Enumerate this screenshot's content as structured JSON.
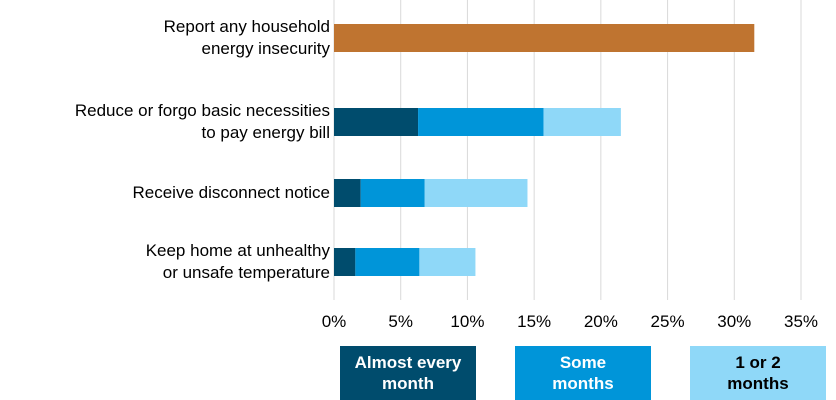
{
  "chart_data": {
    "type": "stacked-barh",
    "categories": [
      "Report any household\nenergy insecurity",
      "Reduce or forgo basic necessities\nto pay energy bill",
      "Receive disconnect notice",
      "Keep home at unhealthy\nor unsafe temperature"
    ],
    "total": {
      "color": "#bf7430",
      "values": [
        31.5,
        null,
        null,
        null
      ]
    },
    "series": [
      {
        "name": "Almost every\nmonth",
        "color": "#004c6d",
        "text_color": "#ffffff",
        "values": [
          null,
          6.3,
          2.0,
          1.6
        ]
      },
      {
        "name": "Some\nmonths",
        "color": "#0095d9",
        "text_color": "#ffffff",
        "values": [
          null,
          9.4,
          4.8,
          4.8
        ]
      },
      {
        "name": "1 or 2\nmonths",
        "color": "#8fd8f8",
        "text_color": "#000000",
        "values": [
          null,
          5.8,
          7.7,
          4.2
        ]
      }
    ],
    "xlim": [
      0,
      35
    ],
    "xticks": [
      {
        "value": 0,
        "label": "0%"
      },
      {
        "value": 5,
        "label": "5%"
      },
      {
        "value": 10,
        "label": "10%"
      },
      {
        "value": 15,
        "label": "15%"
      },
      {
        "value": 20,
        "label": "20%"
      },
      {
        "value": 25,
        "label": "25%"
      },
      {
        "value": 30,
        "label": "30%"
      },
      {
        "value": 35,
        "label": "35%"
      }
    ],
    "grid": true
  }
}
